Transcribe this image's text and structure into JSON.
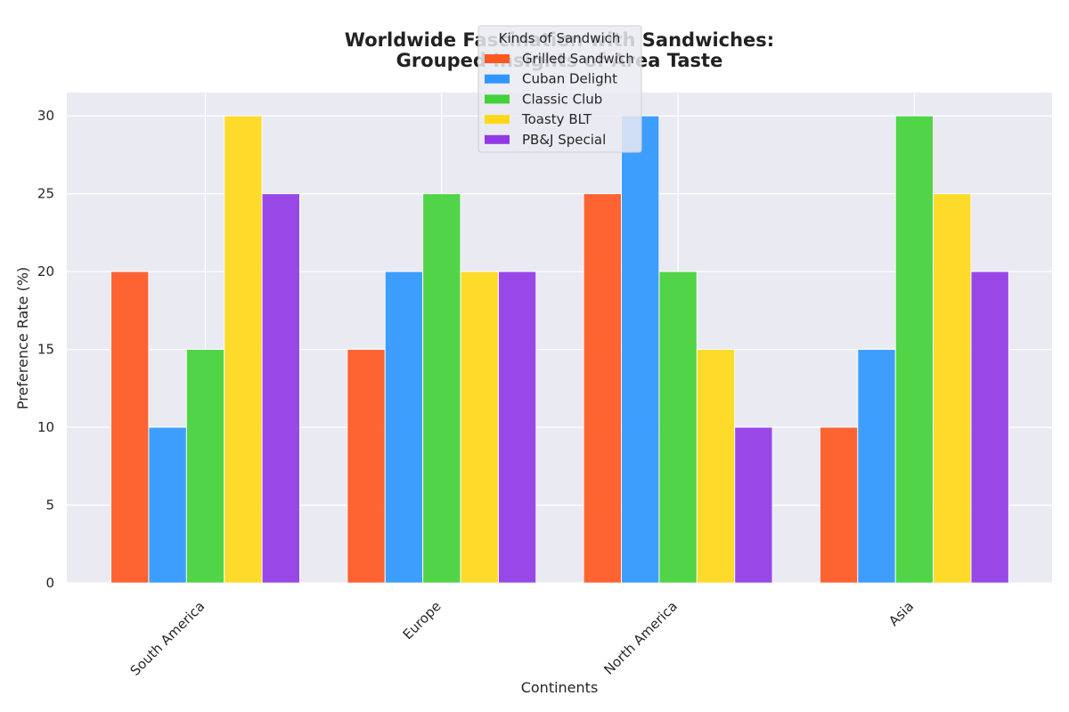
{
  "chart_data": {
    "type": "bar",
    "title_lines": [
      "Worldwide Fascination with Sandwiches:",
      "Grouped Insights of Area Taste"
    ],
    "xlabel": "Continents",
    "ylabel": "Preference Rate (%)",
    "categories": [
      "South America",
      "Europe",
      "North America",
      "Asia"
    ],
    "yticks": [
      "0",
      "5",
      "10",
      "15",
      "20",
      "25",
      "30"
    ],
    "ylim": [
      0,
      31.5
    ],
    "grid": true,
    "background_color": "#eaeaf2",
    "legend": {
      "title": "Kinds of Sandwich",
      "placement": "upper-center"
    },
    "series": [
      {
        "name": "Grilled Sandwich",
        "color": "#ff5722",
        "values": [
          20,
          15,
          25,
          10
        ]
      },
      {
        "name": "Cuban Delight",
        "color": "#2f97ff",
        "values": [
          10,
          20,
          30,
          15
        ]
      },
      {
        "name": "Classic Club",
        "color": "#43d13a",
        "values": [
          15,
          25,
          20,
          30
        ]
      },
      {
        "name": "Toasty BLT",
        "color": "#ffd81a",
        "values": [
          30,
          20,
          15,
          25
        ]
      },
      {
        "name": "PB&J Special",
        "color": "#9139e7",
        "values": [
          25,
          20,
          10,
          20
        ]
      }
    ]
  }
}
